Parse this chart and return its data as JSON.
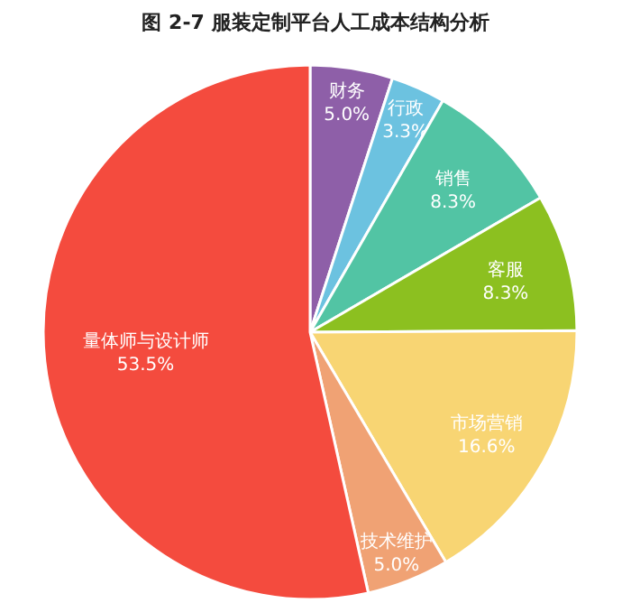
{
  "chart_data": {
    "type": "pie",
    "title": "图 2-7  服装定制平台人工成本结构分析",
    "categories": [
      "财务",
      "行政",
      "销售",
      "客服",
      "市场营销",
      "技术维护",
      "量体师与设计师"
    ],
    "values": [
      5.0,
      3.3,
      8.3,
      8.3,
      16.6,
      5.0,
      53.5
    ],
    "value_labels": [
      "5.0%",
      "3.3%",
      "8.3%",
      "8.3%",
      "16.6%",
      "5.0%",
      "53.5%"
    ],
    "colors": [
      "#8e5fa8",
      "#6cc2e0",
      "#52c4a4",
      "#8cc020",
      "#f8d573",
      "#f0a274",
      "#f44b3e"
    ]
  }
}
